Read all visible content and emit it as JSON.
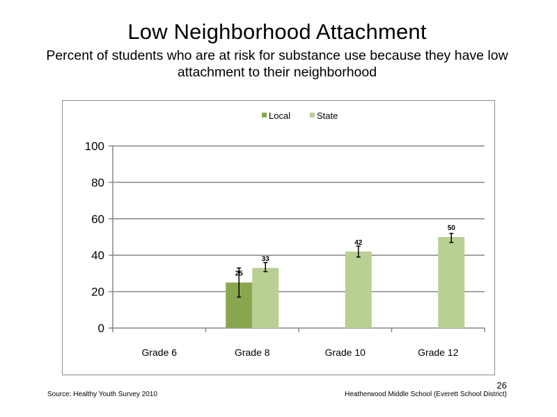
{
  "slide": {
    "title": "Low Neighborhood  Attachment",
    "subtitle": "Percent of students  who are at risk  for substance  use because  they have low attachment  to their neighborhood",
    "source": "Source: Healthy  Youth Survey 2010",
    "school": "Heatherwood Middle  School (Everett School District)",
    "page_number": "26"
  },
  "colors": {
    "local": "#8aa74f",
    "state": "#b9cf93",
    "gridline": "#868686",
    "axis": "#868686"
  },
  "chart_data": {
    "type": "bar",
    "categories": [
      "Grade 6",
      "Grade 8",
      "Grade 10",
      "Grade 12"
    ],
    "series": [
      {
        "name": "Local",
        "values": [
          null,
          25,
          null,
          null
        ],
        "labels": [
          "",
          "25",
          "",
          ""
        ],
        "error_low": [
          null,
          17,
          null,
          null
        ],
        "error_high": [
          null,
          33,
          null,
          null
        ]
      },
      {
        "name": "State",
        "values": [
          null,
          33,
          42,
          50
        ],
        "labels": [
          "",
          "33",
          "42",
          "50"
        ],
        "error_low": [
          null,
          31,
          39,
          47
        ],
        "error_high": [
          null,
          36,
          45,
          52
        ]
      }
    ],
    "yticks": [
      "0",
      "20",
      "40",
      "60",
      "80",
      "100"
    ],
    "ylim": [
      0,
      100
    ],
    "grid": true,
    "legend_position": "top"
  }
}
